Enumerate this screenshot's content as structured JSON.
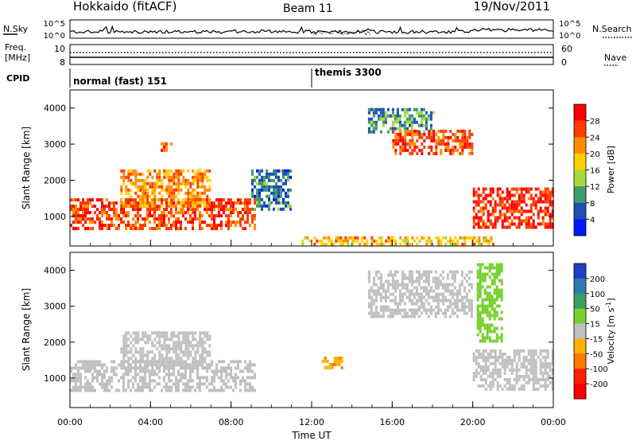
{
  "header": {
    "station": "Hokkaido (fitACF)",
    "beam": "Beam 11",
    "date": "19/Nov/2011"
  },
  "noise_panel": {
    "left_label": "N.Sky",
    "right_label": "N.Search",
    "left_ticks": [
      "10^5",
      "10^0"
    ],
    "right_ticks": [
      "10^5",
      "10^0"
    ]
  },
  "freq_panel": {
    "left_label_1": "Freq.",
    "left_label_2": "[MHz]",
    "left_ticks": [
      "10",
      "8"
    ],
    "right_label": "Nave",
    "right_ticks": [
      "60",
      "0"
    ]
  },
  "cpid_panel": {
    "label": "CPID",
    "segments": [
      {
        "name": "normal (fast) 151",
        "start_hour": 0,
        "end_hour": 12
      },
      {
        "name": "themis 3300",
        "start_hour": 12,
        "end_hour": 24
      }
    ]
  },
  "power_colorbar": {
    "label": "Power [dB]",
    "ticks": [
      "28",
      "24",
      "20",
      "16",
      "12",
      "8",
      "4"
    ],
    "colors": [
      "#ff0000",
      "#ff3c00",
      "#ff8c00",
      "#ffd000",
      "#a8d840",
      "#3c9c6c",
      "#2050b0",
      "#0018ff"
    ]
  },
  "velocity_colorbar": {
    "label": "Velocity [m s",
    "label_sup": "-1",
    "label_end": "]",
    "ticks": [
      "200",
      "100",
      "50",
      "15",
      "-15",
      "-50",
      "-100",
      "-200"
    ],
    "colors": [
      "#2040c0",
      "#2c7cb0",
      "#38a060",
      "#78d030",
      "#c0c0c0",
      "#ffb000",
      "#ff7800",
      "#ff2000",
      "#ff0000"
    ]
  },
  "time_axis": {
    "title": "Time UT",
    "tick_labels": [
      "00:00",
      "04:00",
      "08:00",
      "12:00",
      "16:00",
      "20:00",
      "00:00"
    ]
  },
  "chart_data": [
    {
      "type": "heatmap",
      "name": "Power",
      "ylabel": "Slant Range [km]",
      "xlabel": "",
      "xlim": [
        0,
        24
      ],
      "ylim": [
        180,
        4500
      ],
      "y_ticks": [
        1000,
        2000,
        3000,
        4000
      ],
      "x_ticks": [
        0,
        4,
        8,
        12,
        16,
        20,
        24
      ],
      "colorbar_range_db": [
        0,
        32
      ],
      "regions": [
        {
          "t0": 0.0,
          "t1": 9.2,
          "r0": 700,
          "r1": 1500,
          "value_db": 26
        },
        {
          "t0": 2.5,
          "t1": 7.0,
          "r0": 1300,
          "r1": 2300,
          "value_db": 22
        },
        {
          "t0": 4.5,
          "t1": 5.0,
          "r0": 2800,
          "r1": 3050,
          "value_db": 25
        },
        {
          "t0": 9.0,
          "t1": 11.0,
          "r0": 1200,
          "r1": 2300,
          "value_db": 8
        },
        {
          "t0": 14.8,
          "t1": 18.0,
          "r0": 3300,
          "r1": 4000,
          "value_db": 10
        },
        {
          "t0": 16.0,
          "t1": 20.0,
          "r0": 2700,
          "r1": 3400,
          "value_db": 26
        },
        {
          "t0": 20.0,
          "t1": 24.0,
          "r0": 700,
          "r1": 1800,
          "value_db": 28
        },
        {
          "t0": 11.5,
          "t1": 21.0,
          "r0": 250,
          "r1": 450,
          "value_db": 20
        }
      ]
    },
    {
      "type": "heatmap",
      "name": "Velocity",
      "ylabel": "Slant Range [km]",
      "xlabel": "Time UT",
      "xlim": [
        0,
        24
      ],
      "ylim": [
        180,
        4500
      ],
      "y_ticks": [
        1000,
        2000,
        3000,
        4000
      ],
      "x_ticks": [
        0,
        4,
        8,
        12,
        16,
        20,
        24
      ],
      "colorbar_range_ms": [
        -250,
        250
      ],
      "regions": [
        {
          "t0": 0.0,
          "t1": 9.2,
          "r0": 700,
          "r1": 1500,
          "value_ms": 0
        },
        {
          "t0": 2.5,
          "t1": 7.0,
          "r0": 1300,
          "r1": 2300,
          "value_ms": 0
        },
        {
          "t0": 14.8,
          "t1": 20.0,
          "r0": 2700,
          "r1": 4000,
          "value_ms": 0
        },
        {
          "t0": 20.2,
          "t1": 21.5,
          "r0": 2000,
          "r1": 4200,
          "value_ms": 30
        },
        {
          "t0": 20.0,
          "t1": 24.0,
          "r0": 700,
          "r1": 1800,
          "value_ms": 0
        },
        {
          "t0": 12.5,
          "t1": 13.5,
          "r0": 1300,
          "r1": 1600,
          "value_ms": -40
        }
      ]
    }
  ]
}
